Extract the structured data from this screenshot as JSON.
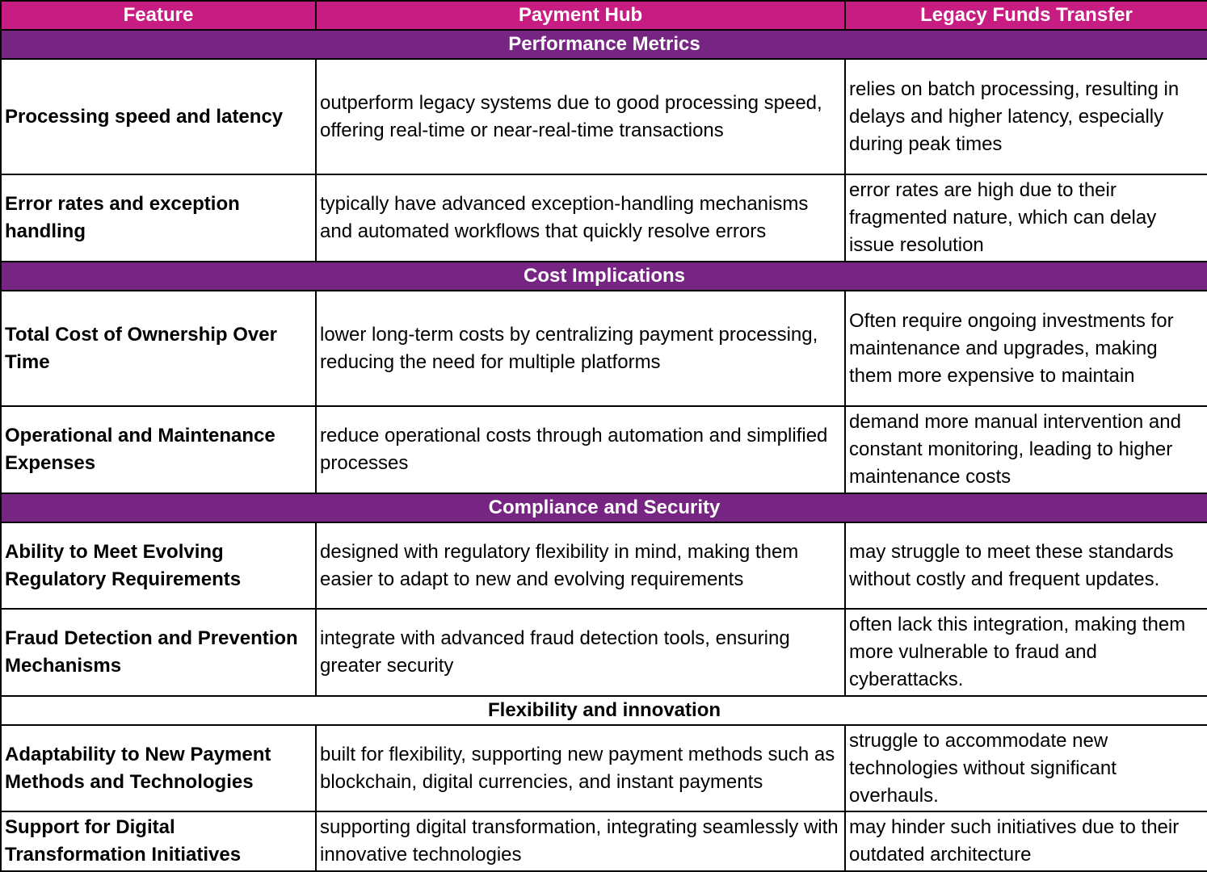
{
  "colors": {
    "header": "#C71C81",
    "section": "#772583"
  },
  "headers": [
    "Feature",
    "Payment Hub",
    "Legacy Funds Transfer"
  ],
  "sections": [
    {
      "title": "Performance Metrics",
      "rows": [
        {
          "feature": "Processing speed and latency",
          "hub": "outperform legacy systems due to good processing speed, offering real-time or near-real-time transactions",
          "legacy": "relies on batch processing, resulting in delays and higher latency, especially during peak times"
        },
        {
          "feature": "Error rates and exception handling",
          "hub": "typically have advanced exception-handling mechanisms and automated workflows that quickly resolve errors",
          "legacy": "error rates are high due to their fragmented nature, which can delay issue resolution"
        }
      ]
    },
    {
      "title": "Cost Implications",
      "rows": [
        {
          "feature": "Total Cost of Ownership Over Time",
          "hub": "lower long-term costs by centralizing payment processing, reducing the need for multiple platforms",
          "legacy": "Often require ongoing investments for maintenance and upgrades, making them more expensive to maintain"
        },
        {
          "feature": "Operational and Maintenance Expenses",
          "hub": "reduce operational costs through automation and simplified processes",
          "legacy": "demand more manual intervention and constant monitoring, leading to higher maintenance costs"
        }
      ]
    },
    {
      "title": "Compliance and Security",
      "rows": [
        {
          "feature": "Ability to Meet Evolving Regulatory Requirements",
          "hub": "designed with regulatory flexibility in mind, making them easier to adapt to new and evolving requirements",
          "legacy": "may struggle to meet these standards without costly and frequent updates."
        },
        {
          "feature": "Fraud Detection and Prevention Mechanisms",
          "hub": "integrate with advanced fraud detection tools, ensuring greater security",
          "legacy": "often lack this integration, making them more vulnerable to fraud and cyberattacks."
        }
      ]
    },
    {
      "title": "Flexibility and innovation",
      "rows": [
        {
          "feature": "Adaptability to New Payment Methods and Technologies",
          "hub": "built for flexibility, supporting new payment methods such as blockchain, digital currencies, and instant payments",
          "legacy": "struggle to accommodate new technologies without significant overhauls."
        },
        {
          "feature": "Support for Digital Transformation Initiatives",
          "hub": "supporting digital transformation, integrating seamlessly with innovative technologies",
          "legacy": "may hinder such initiatives due to their outdated architecture"
        }
      ]
    }
  ]
}
